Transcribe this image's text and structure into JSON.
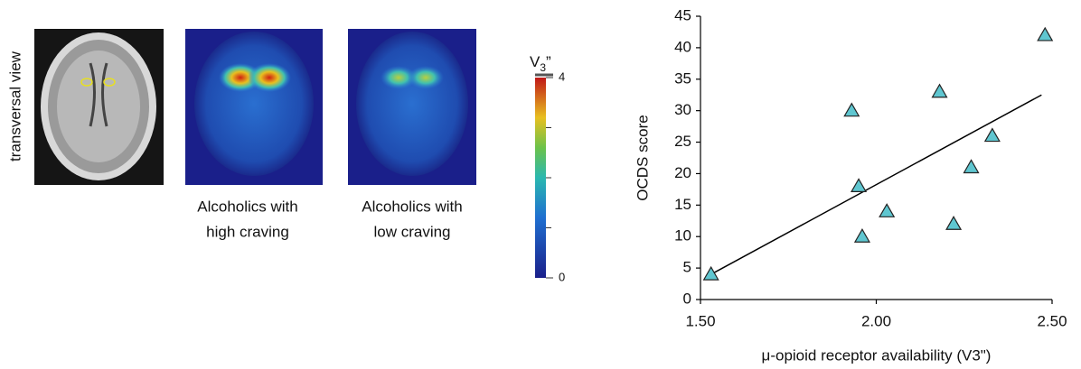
{
  "panels": {
    "view_label": "transversal view",
    "captions": [
      [
        "Alcoholics with",
        "high craving"
      ],
      [
        "Alcoholics with",
        "low craving"
      ]
    ],
    "colorbar": {
      "label": "V",
      "label_sub": "3",
      "label_suffix": "”",
      "clim": [
        0,
        4
      ],
      "ticks": [
        0,
        4
      ]
    }
  },
  "chart_data": {
    "type": "scatter",
    "xlabel": "μ-opioid receptor availability (V3\")",
    "ylabel": "OCDS score",
    "x": [
      1.53,
      1.93,
      1.95,
      1.96,
      2.03,
      2.18,
      2.22,
      2.27,
      2.33,
      2.48
    ],
    "values": [
      4,
      30,
      18,
      10,
      14,
      33,
      12,
      21,
      26,
      42
    ],
    "color": "#5fc6d0",
    "trendline": {
      "x": [
        1.53,
        2.47
      ],
      "y": [
        4,
        32.5
      ]
    },
    "xlim": [
      1.5,
      2.5
    ],
    "xticks": [
      {
        "value": 1.5,
        "label": "1.50"
      },
      {
        "value": 2,
        "label": "2.00"
      },
      {
        "value": 2.5,
        "label": "2.50"
      }
    ],
    "ylim": [
      0,
      45
    ],
    "yticks": [
      0,
      5,
      10,
      15,
      20,
      25,
      30,
      35,
      40,
      45
    ]
  }
}
